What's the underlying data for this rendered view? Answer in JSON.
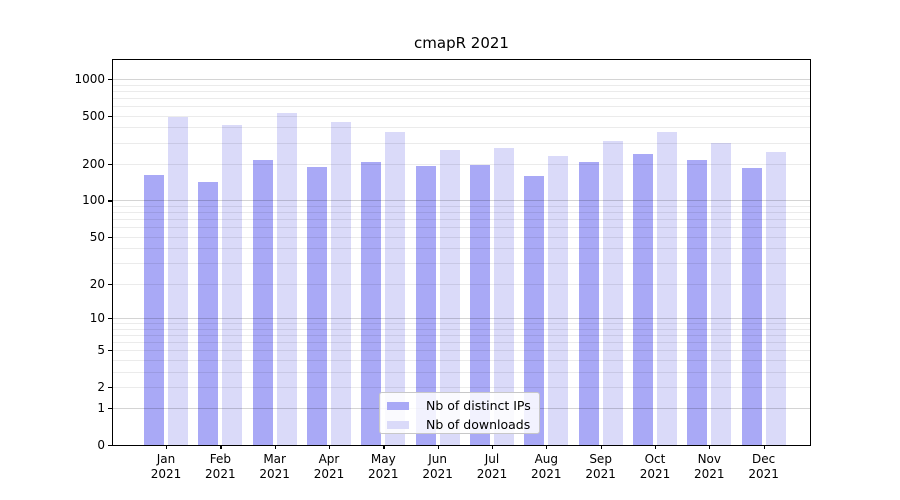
{
  "chart_data": {
    "type": "bar",
    "title": "cmapR 2021",
    "categories": [
      "Jan",
      "Feb",
      "Mar",
      "Apr",
      "May",
      "Jun",
      "Jul",
      "Aug",
      "Sep",
      "Oct",
      "Nov",
      "Dec"
    ],
    "year_label": "2021",
    "series": [
      {
        "name": "Nb of distinct IPs",
        "color": "#a9a9f6",
        "values": [
          162,
          143,
          217,
          190,
          208,
          192,
          197,
          159,
          207,
          240,
          215,
          186
        ]
      },
      {
        "name": "Nb of downloads",
        "color": "#dadaf9",
        "values": [
          490,
          420,
          525,
          445,
          365,
          262,
          270,
          235,
          308,
          368,
          297,
          250
        ]
      }
    ],
    "y_axis": {
      "ticks": [
        0,
        1,
        2,
        5,
        10,
        20,
        50,
        100,
        200,
        500,
        1000
      ],
      "scale": "log1p (position = log10(value+1))",
      "decade_ticks": [
        1,
        10,
        100,
        1000
      ],
      "ylim": [
        0,
        1430
      ]
    },
    "grid": {
      "orientation": "horizontal",
      "minor_values": [
        3,
        4,
        6,
        7,
        8,
        9,
        30,
        40,
        60,
        70,
        80,
        90,
        300,
        400,
        600,
        700,
        800,
        900
      ]
    },
    "legend_position": "lower center"
  }
}
